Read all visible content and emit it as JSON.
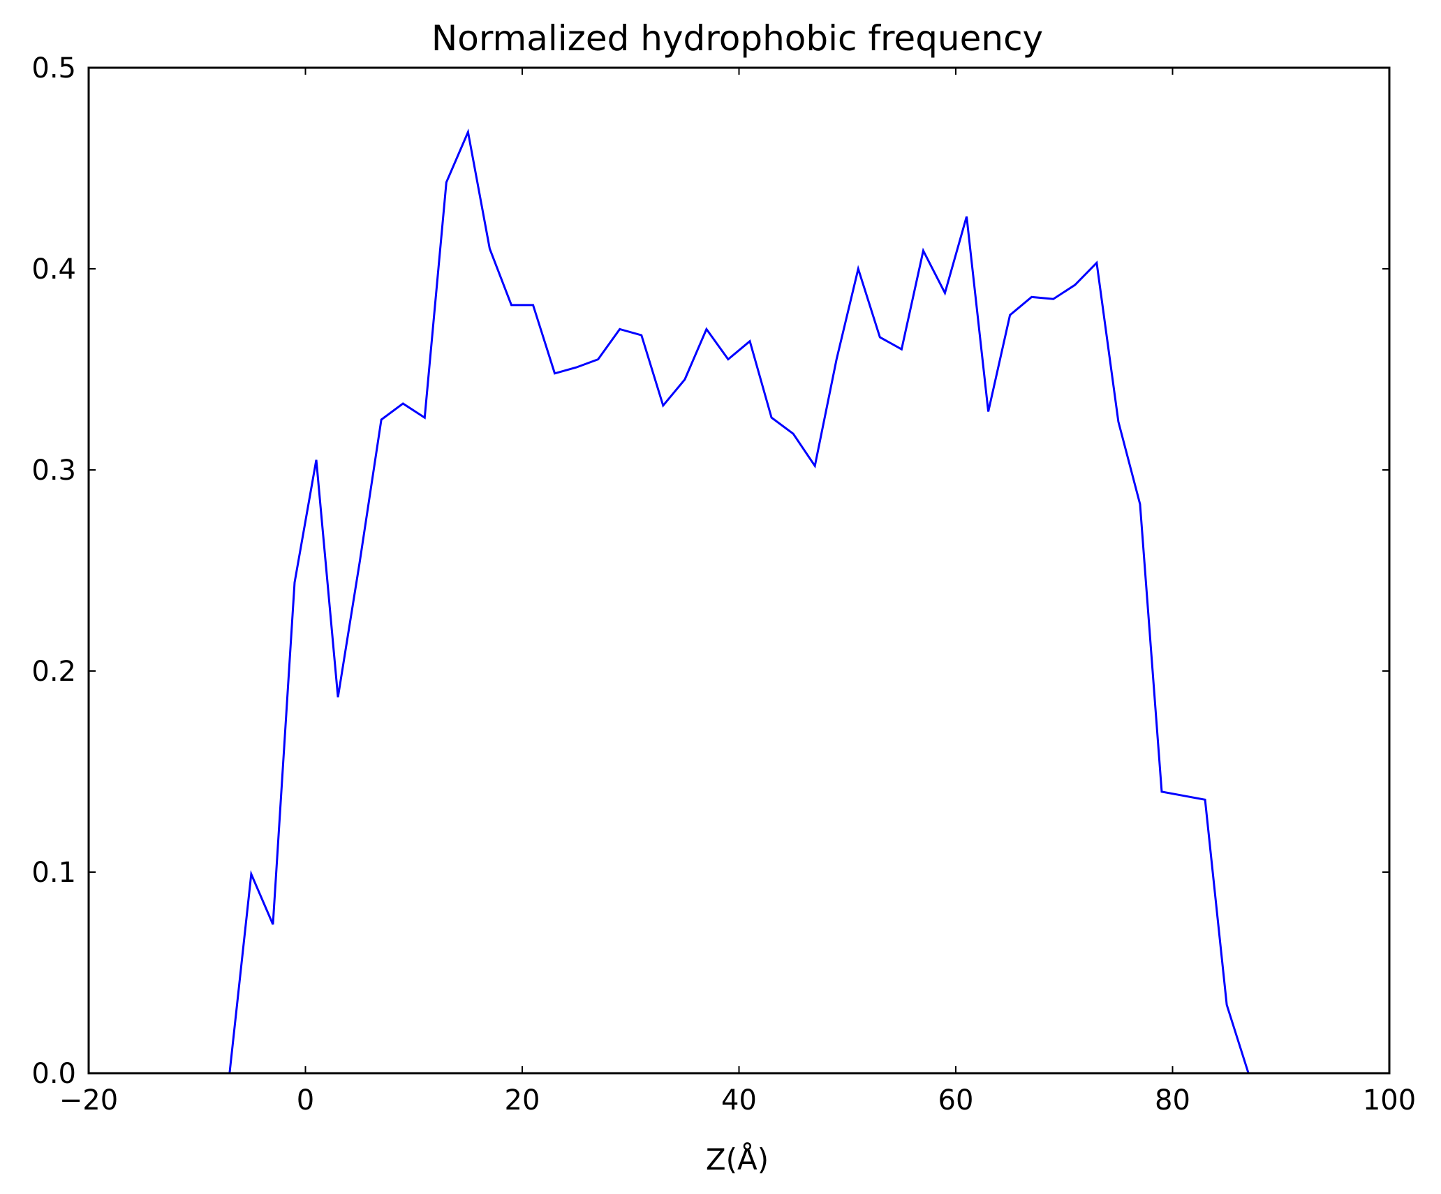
{
  "chart_data": {
    "type": "line",
    "title": "Normalized hydrophobic frequency",
    "xlabel": "Z(Å)",
    "ylabel": "",
    "xlim": [
      -20,
      100
    ],
    "ylim": [
      0,
      0.5
    ],
    "xticks": [
      -20,
      0,
      20,
      40,
      60,
      80,
      100
    ],
    "xtick_labels": [
      "−20",
      "0",
      "20",
      "40",
      "60",
      "80",
      "100"
    ],
    "yticks": [
      0,
      0.1,
      0.2,
      0.3,
      0.4,
      0.5
    ],
    "ytick_labels": [
      "0.0",
      "0.1",
      "0.2",
      "0.3",
      "0.4",
      "0.5"
    ],
    "grid": false,
    "legend": "none",
    "series": [
      {
        "color": "#0000ff",
        "x": [
          -9.0,
          -7.0,
          -5.0,
          -3.0,
          -1.0,
          1.0,
          3.0,
          5.0,
          7.0,
          9.0,
          11.0,
          13.0,
          15.0,
          17.0,
          19.0,
          21.0,
          23.0,
          25.0,
          27.0,
          29.0,
          31.0,
          33.0,
          35.0,
          37.0,
          39.0,
          41.0,
          43.0,
          45.0,
          47.0,
          49.0,
          51.0,
          53.0,
          55.0,
          57.0,
          59.0,
          61.0,
          63.0,
          65.0,
          67.0,
          69.0,
          71.0,
          73.0,
          75.0,
          77.0,
          79.0,
          81.0,
          83.0,
          85.0,
          87.0,
          89.0
        ],
        "y": [
          0.0,
          0.0,
          0.099,
          0.074,
          0.244,
          0.305,
          0.187,
          0.254,
          0.325,
          0.333,
          0.326,
          0.443,
          0.468,
          0.41,
          0.382,
          0.382,
          0.348,
          0.351,
          0.355,
          0.37,
          0.367,
          0.332,
          0.345,
          0.37,
          0.355,
          0.364,
          0.326,
          0.318,
          0.302,
          0.355,
          0.4,
          0.366,
          0.36,
          0.409,
          0.388,
          0.426,
          0.329,
          0.377,
          0.386,
          0.385,
          0.392,
          0.403,
          0.324,
          0.283,
          0.14,
          0.138,
          0.136,
          0.034,
          0.0,
          0.0
        ]
      }
    ]
  }
}
